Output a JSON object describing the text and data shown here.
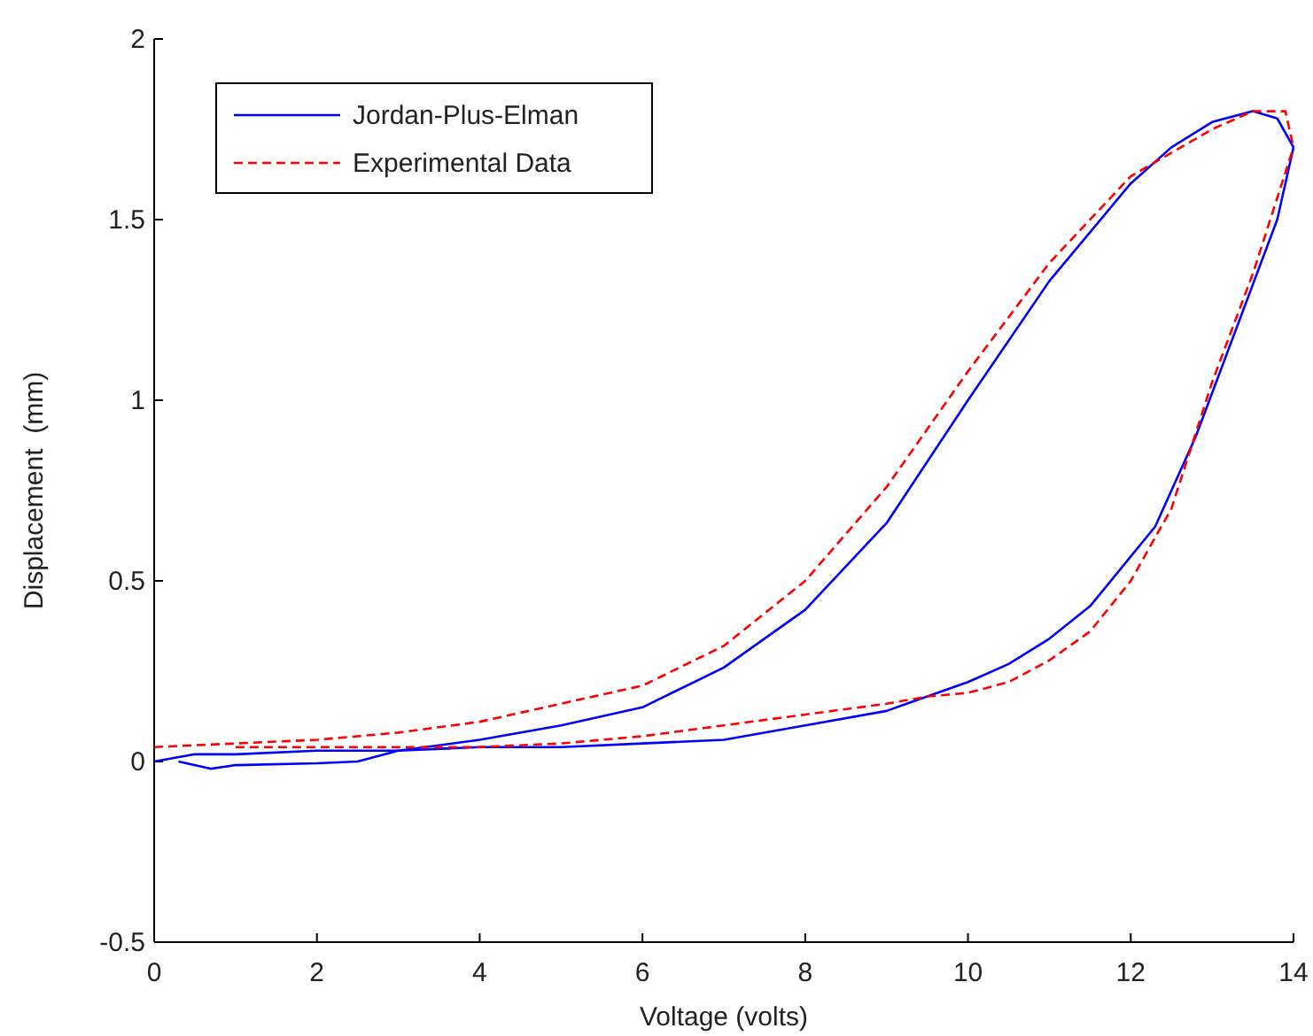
{
  "chart_data": {
    "type": "line",
    "xlabel": "Voltage (volts)",
    "ylabel": "Displacement  (mm)",
    "xlim": [
      0,
      14
    ],
    "ylim": [
      -0.5,
      2
    ],
    "xticks": [
      0,
      2,
      4,
      6,
      8,
      10,
      12,
      14
    ],
    "yticks": [
      -0.5,
      0,
      0.5,
      1,
      1.5,
      2
    ],
    "grid": false,
    "legend": "top left",
    "marker": "none",
    "series": [
      {
        "name": "Jordan-Plus-Elman",
        "color": "#0000ff",
        "line_style": "solid",
        "x": [
          0,
          0.5,
          1,
          2,
          3,
          4,
          5,
          6,
          7,
          8,
          9,
          10,
          11,
          12,
          12.5,
          13,
          13.5,
          13.8,
          14
        ],
        "values": [
          0,
          0.02,
          0.02,
          0.03,
          0.03,
          0.06,
          0.1,
          0.15,
          0.26,
          0.42,
          0.66,
          1.0,
          1.33,
          1.6,
          1.7,
          1.77,
          1.8,
          1.78,
          1.7
        ]
      },
      {
        "color": "#0000ff",
        "line_style": "solid",
        "x": [
          0.3,
          0.7,
          1,
          2,
          2.5,
          3,
          4,
          5,
          6,
          7,
          8,
          9,
          9.5,
          10,
          10.5,
          11,
          11.5,
          12.3,
          12.8,
          13.3,
          13.8,
          14
        ],
        "values": [
          0,
          -0.02,
          -0.01,
          -0.005,
          0,
          0.03,
          0.04,
          0.04,
          0.05,
          0.06,
          0.1,
          0.14,
          0.18,
          0.22,
          0.27,
          0.34,
          0.43,
          0.65,
          0.9,
          1.2,
          1.5,
          1.7
        ]
      },
      {
        "name": "Experimental Data",
        "color": "#ff0000",
        "line_style": "dashed",
        "x": [
          0,
          1,
          2,
          3,
          4,
          5,
          6,
          7,
          8,
          9,
          10,
          11,
          12,
          13,
          13.5,
          13.9,
          14
        ],
        "values": [
          0.04,
          0.05,
          0.06,
          0.08,
          0.11,
          0.16,
          0.21,
          0.32,
          0.5,
          0.76,
          1.08,
          1.38,
          1.62,
          1.75,
          1.8,
          1.8,
          1.7
        ]
      },
      {
        "color": "#ff0000",
        "line_style": "dashed",
        "x": [
          1,
          2,
          3,
          4,
          5,
          6,
          7,
          8,
          9,
          9.5,
          10,
          10.5,
          11,
          11.5,
          12,
          12.5,
          13,
          13.5,
          14
        ],
        "values": [
          0.04,
          0.04,
          0.04,
          0.04,
          0.05,
          0.07,
          0.1,
          0.13,
          0.16,
          0.18,
          0.19,
          0.22,
          0.28,
          0.36,
          0.5,
          0.7,
          1.05,
          1.35,
          1.7
        ]
      }
    ]
  }
}
